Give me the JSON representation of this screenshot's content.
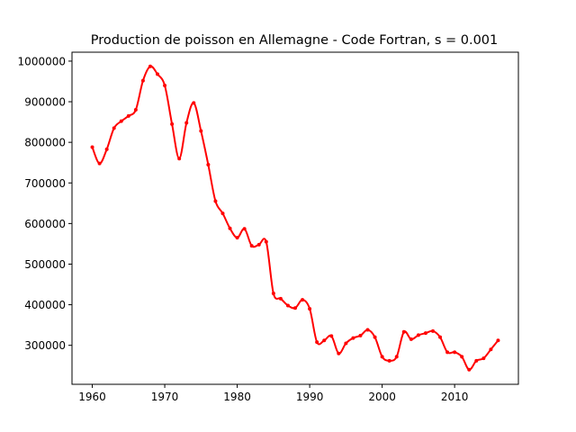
{
  "chart_data": {
    "type": "line",
    "title": "Production de poisson en Allemagne - Code Fortran, s = 0.001",
    "xlabel": "",
    "ylabel": "",
    "xlim": [
      1957.2,
      2018.8
    ],
    "ylim": [
      204000,
      1022000
    ],
    "xticks": [
      1960,
      1970,
      1980,
      1990,
      2000,
      2010
    ],
    "yticks": [
      300000,
      400000,
      500000,
      600000,
      700000,
      800000,
      900000,
      1000000
    ],
    "grid": false,
    "legend": "none",
    "series": [
      {
        "color": "#ff0000",
        "marker": "dot",
        "x": [
          1960,
          1961,
          1962,
          1963,
          1964,
          1965,
          1966,
          1967,
          1968,
          1969,
          1970,
          1971,
          1972,
          1973,
          1974,
          1975,
          1976,
          1977,
          1978,
          1979,
          1980,
          1981,
          1982,
          1983,
          1984,
          1985,
          1986,
          1987,
          1988,
          1989,
          1990,
          1991,
          1992,
          1993,
          1994,
          1995,
          1996,
          1997,
          1998,
          1999,
          2000,
          2001,
          2002,
          2003,
          2004,
          2005,
          2006,
          2007,
          2008,
          2009,
          2010,
          2011,
          2012,
          2013,
          2014,
          2015,
          2016
        ],
        "y": [
          788000,
          748000,
          783000,
          835000,
          852000,
          865000,
          880000,
          952000,
          987000,
          968000,
          940000,
          845000,
          760000,
          848000,
          897000,
          828000,
          745000,
          655000,
          625000,
          588000,
          565000,
          587000,
          545000,
          548000,
          555000,
          428000,
          415000,
          398000,
          392000,
          412000,
          390000,
          308000,
          312000,
          323000,
          280000,
          305000,
          318000,
          324000,
          338000,
          320000,
          272000,
          262000,
          272000,
          333000,
          315000,
          325000,
          330000,
          335000,
          320000,
          283000,
          283000,
          272000,
          240000,
          262000,
          268000,
          290000,
          312000
        ]
      }
    ]
  }
}
